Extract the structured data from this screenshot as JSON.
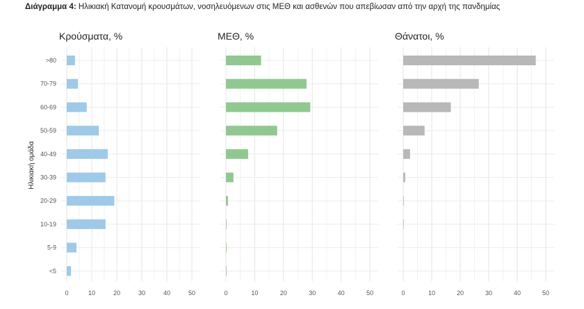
{
  "figure": {
    "label": "Διάγραμμα 4:",
    "title": "Ηλικιακή Κατανομή κρουσμάτων, νοσηλευόμενων στις ΜΕΘ και ασθενών που απεβίωσαν από την αρχή της πανδημίας"
  },
  "chart_data": [
    {
      "type": "bar",
      "orientation": "horizontal",
      "title": "Κρούσματα, %",
      "ylabel": "Ηλικιακή ομάδα",
      "xlabel": "",
      "categories": [
        ">80",
        "70-79",
        "60-69",
        "50-59",
        "40-49",
        "30-39",
        "20-29",
        "10-19",
        "5-9",
        "<5"
      ],
      "values": [
        3.3,
        4.5,
        8.0,
        12.8,
        16.4,
        15.5,
        19.0,
        15.5,
        3.9,
        1.7
      ],
      "xlim": [
        0,
        52
      ],
      "xticks": [
        0,
        10,
        20,
        30,
        40,
        50
      ],
      "color": "#9ecae9",
      "grid": true
    },
    {
      "type": "bar",
      "orientation": "horizontal",
      "title": "ΜΕΘ, %",
      "categories": [
        ">80",
        "70-79",
        "60-69",
        "50-59",
        "40-49",
        "30-39",
        "20-29",
        "10-19",
        "5-9",
        "<5"
      ],
      "values": [
        12.2,
        28.0,
        29.3,
        17.8,
        7.7,
        2.6,
        0.7,
        0.2,
        0.1,
        0.1
      ],
      "xlim": [
        0,
        52
      ],
      "xticks": [
        0,
        10,
        20,
        30,
        40,
        50
      ],
      "color": "#8fc98f",
      "grid": true
    },
    {
      "type": "bar",
      "orientation": "horizontal",
      "title": "Θάνατοι, %",
      "categories": [
        ">80",
        "70-79",
        "60-69",
        "50-59",
        "40-49",
        "30-39",
        "20-29",
        "10-19",
        "5-9",
        "<5"
      ],
      "values": [
        46.5,
        26.5,
        16.7,
        7.5,
        2.4,
        0.7,
        0.2,
        0.1,
        0,
        0
      ],
      "xlim": [
        0,
        52
      ],
      "xticks": [
        0,
        10,
        20,
        30,
        40,
        50
      ],
      "color": "#b8b8b8",
      "grid": true
    }
  ]
}
